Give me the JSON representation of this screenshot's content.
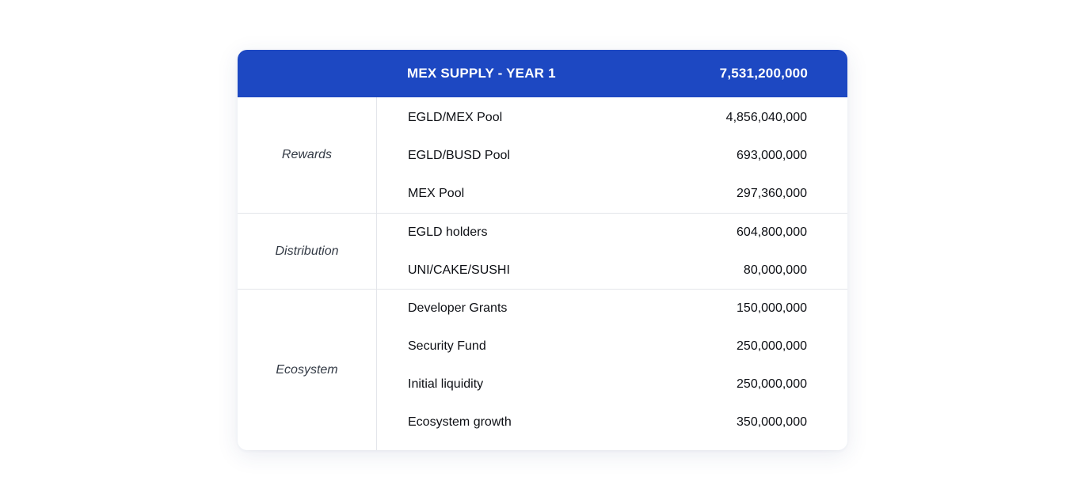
{
  "header": {
    "title": "MEX SUPPLY - YEAR 1",
    "total": "7,531,200,000"
  },
  "groups": [
    {
      "label": "Rewards",
      "rows": [
        {
          "name": "EGLD/MEX Pool",
          "amount": "4,856,040,000"
        },
        {
          "name": "EGLD/BUSD Pool",
          "amount": "693,000,000"
        },
        {
          "name": "MEX Pool",
          "amount": "297,360,000"
        }
      ]
    },
    {
      "label": "Distribution",
      "rows": [
        {
          "name": "EGLD holders",
          "amount": "604,800,000"
        },
        {
          "name": "UNI/CAKE/SUSHI",
          "amount": "80,000,000"
        }
      ]
    },
    {
      "label": "Ecosystem",
      "rows": [
        {
          "name": "Developer Grants",
          "amount": "150,000,000"
        },
        {
          "name": "Security Fund",
          "amount": "250,000,000"
        },
        {
          "name": "Initial liquidity",
          "amount": "250,000,000"
        },
        {
          "name": "Ecosystem growth",
          "amount": "350,000,000"
        }
      ]
    }
  ]
}
